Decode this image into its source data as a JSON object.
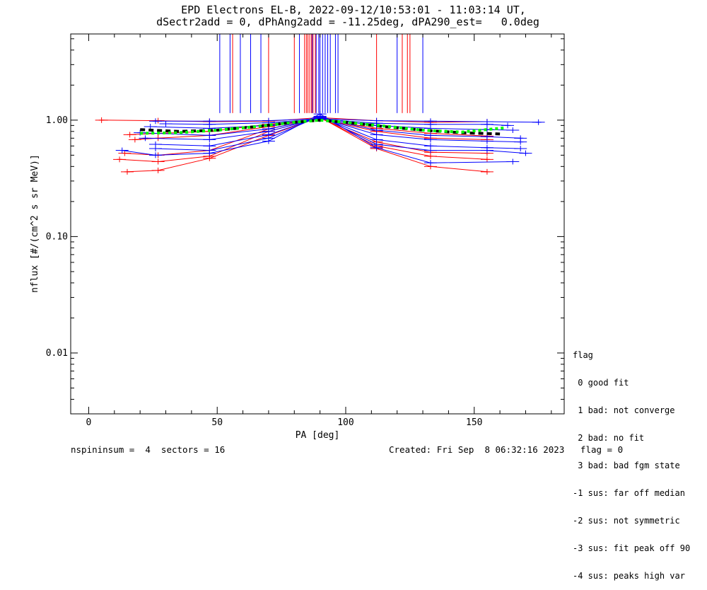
{
  "title_line1": "EPD Electrons EL-B, 2022-09-12/10:53:01 - 11:03:14 UT,",
  "title_line2": "dSectr2add = 0, dPhAng2add = -11.25deg, dPA290_est=   0.0deg",
  "legend": {
    "title": "flag",
    "items": [
      " 0 good fit",
      " 1 bad: not converge",
      " 2 bad: no fit",
      " 3 bad: bad fgm state",
      "-1 sus: far off median",
      "-2 sus: not symmetric",
      "-3 sus: fit peak off 90",
      "-4 sus: peaks high var"
    ]
  },
  "footer": {
    "left": "nspininsum =  4  sectors = 16",
    "right": "Created: Fri Sep  8 06:32:16 2023   flag = 0"
  },
  "colors": {
    "red": "#ff0000",
    "blue": "#0000ff",
    "black": "#000000",
    "green": "#00ff00"
  },
  "chart_data": {
    "type": "line",
    "xlabel": "PA [deg]",
    "ylabel": "nflux [#/(cm^2 s sr MeV)]",
    "xlim": [
      -7,
      185
    ],
    "ylim": [
      0.003,
      5.5
    ],
    "y_scale": "log",
    "x_ticks": [
      0,
      50,
      100,
      150
    ],
    "x_tick_labels": [
      "0",
      "50",
      "100",
      "150"
    ],
    "y_ticks": [
      0.01,
      0.1,
      1.0
    ],
    "y_tick_labels": [
      "0.01",
      "0.10",
      "1.00"
    ],
    "grid": false,
    "series": [
      {
        "color": "red",
        "x": [
          5,
          27,
          47,
          70,
          90,
          112,
          133,
          155
        ],
        "y": [
          1.0,
          0.99,
          0.97,
          0.98,
          1.05,
          0.99,
          0.96,
          0.97
        ]
      },
      {
        "color": "red",
        "x": [
          15,
          27,
          47,
          70,
          90,
          112,
          133,
          155
        ],
        "y": [
          0.36,
          0.37,
          0.47,
          0.74,
          1.06,
          0.57,
          0.4,
          0.36
        ]
      },
      {
        "color": "red",
        "x": [
          12,
          27,
          47,
          70,
          90,
          112,
          133,
          155
        ],
        "y": [
          0.46,
          0.44,
          0.49,
          0.8,
          1.05,
          0.6,
          0.49,
          0.46
        ]
      },
      {
        "color": "red",
        "x": [
          14,
          27,
          47,
          70,
          90,
          112,
          133,
          155
        ],
        "y": [
          0.52,
          0.5,
          0.55,
          0.84,
          1.04,
          0.65,
          0.53,
          0.52
        ]
      },
      {
        "color": "red",
        "x": [
          18,
          27,
          47,
          70,
          90,
          112,
          133,
          155
        ],
        "y": [
          0.68,
          0.7,
          0.74,
          0.88,
          1.03,
          0.8,
          0.7,
          0.68
        ]
      },
      {
        "color": "red",
        "x": [
          16,
          27,
          47,
          70,
          90,
          112,
          133,
          155
        ],
        "y": [
          0.75,
          0.77,
          0.8,
          0.92,
          1.02,
          0.85,
          0.77,
          0.73
        ]
      },
      {
        "color": "blue",
        "x": [
          26,
          47,
          70,
          90,
          112,
          133,
          155,
          175
        ],
        "y": [
          0.98,
          0.98,
          0.99,
          1.03,
          0.99,
          0.98,
          0.97,
          0.96
        ]
      },
      {
        "color": "blue",
        "x": [
          13,
          26,
          47,
          70,
          90,
          112,
          133,
          165
        ],
        "y": [
          0.55,
          0.5,
          0.52,
          0.66,
          1.13,
          0.58,
          0.43,
          0.44
        ]
      },
      {
        "color": "blue",
        "x": [
          26,
          47,
          70,
          90,
          112,
          133,
          155,
          170
        ],
        "y": [
          0.57,
          0.55,
          0.7,
          1.08,
          0.62,
          0.55,
          0.55,
          0.52
        ]
      },
      {
        "color": "blue",
        "x": [
          26,
          47,
          70,
          90,
          112,
          133,
          155,
          168
        ],
        "y": [
          0.62,
          0.6,
          0.75,
          1.07,
          0.68,
          0.6,
          0.58,
          0.57
        ]
      },
      {
        "color": "blue",
        "x": [
          22,
          47,
          70,
          90,
          112,
          133,
          155,
          168
        ],
        "y": [
          0.7,
          0.68,
          0.8,
          1.05,
          0.75,
          0.68,
          0.66,
          0.65
        ]
      },
      {
        "color": "blue",
        "x": [
          20,
          47,
          70,
          90,
          112,
          133,
          155,
          168
        ],
        "y": [
          0.78,
          0.74,
          0.84,
          1.04,
          0.82,
          0.74,
          0.72,
          0.7
        ]
      },
      {
        "color": "blue",
        "x": [
          24,
          47,
          70,
          90,
          112,
          133,
          155,
          165
        ],
        "y": [
          0.88,
          0.85,
          0.9,
          1.03,
          0.9,
          0.85,
          0.83,
          0.82
        ]
      },
      {
        "color": "blue",
        "x": [
          30,
          47,
          70,
          90,
          112,
          133,
          155,
          163
        ],
        "y": [
          0.93,
          0.92,
          0.95,
          1.02,
          0.94,
          0.92,
          0.92,
          0.9
        ]
      }
    ],
    "fit_curves": [
      {
        "color": "black",
        "style": "dashed",
        "x": [
          20,
          35,
          50,
          65,
          80,
          90,
          100,
          115,
          130,
          145,
          160
        ],
        "y": [
          0.83,
          0.8,
          0.82,
          0.88,
          0.96,
          1.0,
          0.96,
          0.88,
          0.82,
          0.78,
          0.76
        ]
      },
      {
        "color": "green",
        "style": "dotted",
        "x": [
          20,
          35,
          50,
          65,
          80,
          90,
          100,
          115,
          130,
          145,
          162
        ],
        "y": [
          0.77,
          0.78,
          0.82,
          0.88,
          0.96,
          1.0,
          0.96,
          0.89,
          0.82,
          0.79,
          0.86
        ]
      }
    ],
    "vertical_lines": [
      {
        "color": "blue",
        "x": [
          51,
          55,
          59,
          63,
          67,
          82,
          87,
          88.5,
          89.5,
          90,
          91,
          92,
          93,
          94,
          96,
          97,
          120,
          130
        ]
      },
      {
        "color": "red",
        "x": [
          56,
          70,
          80,
          84,
          84.7,
          85.3,
          86,
          86.7,
          87.3,
          88.2,
          112,
          122,
          124,
          125
        ]
      }
    ]
  }
}
